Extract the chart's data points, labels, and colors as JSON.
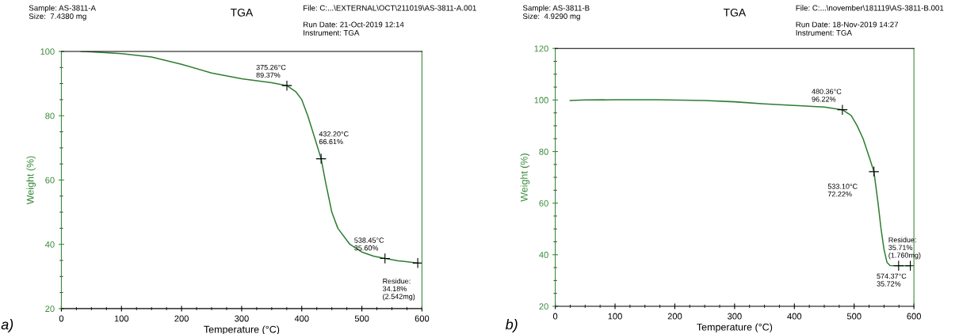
{
  "chart_data": [
    {
      "type": "line",
      "title": "TGA",
      "xlabel": "Temperature (°C)",
      "ylabel": "Weight (%)",
      "series": [
        {
          "color": "#2e7d32",
          "x": [
            33,
            50,
            100,
            150,
            200,
            250,
            300,
            350,
            375.26,
            390,
            400,
            410,
            420,
            432.2,
            440,
            450,
            460,
            480,
            500,
            520,
            538.45,
            560,
            593
          ],
          "values": [
            100,
            99.9,
            99.3,
            98.3,
            96,
            93.3,
            91.5,
            90.3,
            89.37,
            87.5,
            85,
            80,
            74,
            66.61,
            59,
            50,
            45,
            40,
            37.6,
            36.3,
            35.6,
            34.9,
            34.18
          ]
        }
      ],
      "xlim": [
        0,
        600
      ],
      "xticks": [
        0,
        100,
        200,
        300,
        400,
        500,
        600
      ],
      "ylim": [
        20,
        100
      ],
      "yticks": [
        20,
        40,
        60,
        80,
        100
      ],
      "grid": false,
      "marker": "none",
      "line_style": "solid",
      "annotations": [
        "Sample: AS-3811-A\nSize:  7.4380 mg",
        "File: C:...\\EXTERNAL\\OCT\\211019\\AS-3811-A.001\n\nRun Date: 21-Oct-2019 12:14\nInstrument: TGA",
        "a)",
        {
          "text": "375.26°C\n89.37%",
          "x": 375.26,
          "y": 89.37
        },
        {
          "text": "432.20°C\n66.61%",
          "x": 432.2,
          "y": 66.61
        },
        {
          "text": "538.45°C\n35.60%",
          "x": 538.45,
          "y": 35.6
        },
        {
          "text": "Residue:\n34.18%\n(2.542mg)",
          "x": 593,
          "y": 34.18
        }
      ]
    },
    {
      "type": "line",
      "title": "TGA",
      "xlabel": "Temperature (°C)",
      "ylabel": "Weight (%)",
      "series": [
        {
          "color": "#2e7d32",
          "x": [
            25,
            50,
            100,
            170,
            250,
            300,
            350,
            400,
            450,
            480.36,
            495,
            505,
            515,
            525,
            533.1,
            540,
            545,
            550,
            555,
            560,
            574.37,
            594
          ],
          "values": [
            99.8,
            100,
            100.1,
            100.1,
            99.8,
            99.3,
            98.5,
            97.9,
            97.3,
            96.22,
            94,
            90,
            85,
            78,
            72.22,
            60,
            50,
            42,
            37,
            35.8,
            35.72,
            35.71
          ]
        }
      ],
      "xlim": [
        0,
        600
      ],
      "xticks": [
        0,
        100,
        200,
        300,
        400,
        500,
        600
      ],
      "ylim": [
        20,
        120
      ],
      "yticks": [
        20,
        40,
        60,
        80,
        100,
        120
      ],
      "grid": false,
      "marker": "none",
      "line_style": "solid",
      "annotations": [
        "Sample: AS-3811-B\nSize:  4.9290 mg",
        "File: C:...\\november\\181119\\AS-3811-B.001\n\nRun Date: 18-Nov-2019 14:27\nInstrument: TGA",
        "b)",
        {
          "text": "480.36°C\n96.22%",
          "x": 480.36,
          "y": 96.22
        },
        {
          "text": "533.10°C\n72.22%",
          "x": 533.1,
          "y": 72.22
        },
        {
          "text": "574.37°C\n35.72%",
          "x": 574.37,
          "y": 35.72
        },
        {
          "text": "Residue:\n35.71%\n(1.760mg)",
          "x": 594,
          "y": 35.71
        }
      ]
    }
  ]
}
